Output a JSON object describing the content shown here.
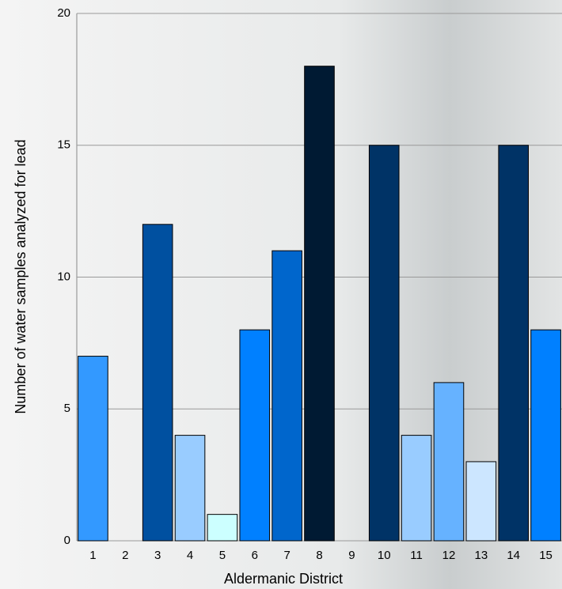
{
  "chart_data": {
    "type": "bar",
    "x_label": "Aldermanic District",
    "y_label": "Number of water samples analyzed for lead",
    "categories": [
      "1",
      "2",
      "3",
      "4",
      "5",
      "6",
      "7",
      "8",
      "9",
      "10",
      "11",
      "12",
      "13",
      "14",
      "15"
    ],
    "values": [
      7,
      0,
      12,
      4,
      1,
      8,
      11,
      18,
      0,
      15,
      4,
      6,
      3,
      15,
      8
    ],
    "colors": [
      "#3399ff",
      null,
      "#0050a0",
      "#99ccff",
      "#ccffff",
      "#0080ff",
      "#0066cc",
      "#001a33",
      null,
      "#003366",
      "#99ccff",
      "#66b2ff",
      "#cce6ff",
      "#003366",
      "#0080ff"
    ],
    "ylim": [
      0,
      20
    ],
    "yticks": [
      0,
      5,
      10,
      15,
      20
    ],
    "grid": true
  }
}
